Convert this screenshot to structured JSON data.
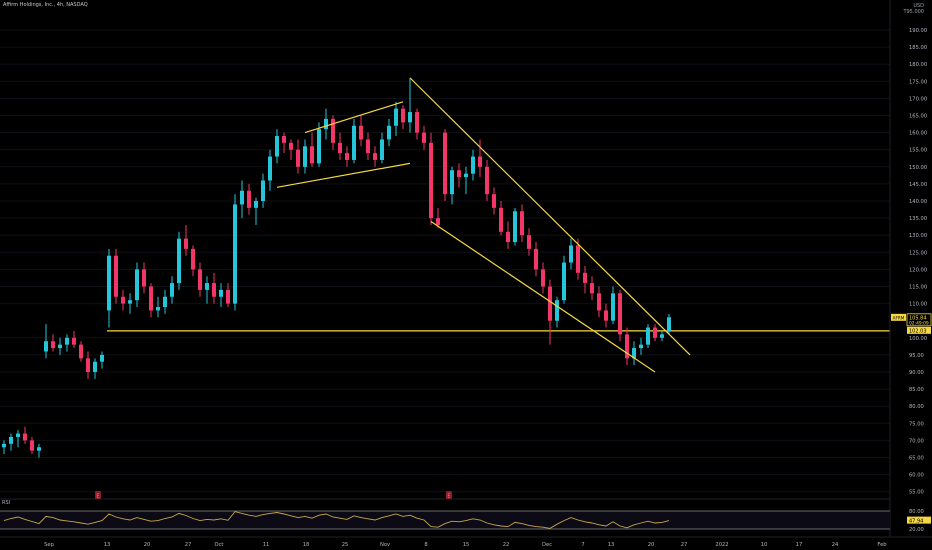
{
  "header": {
    "symbol_line": "Affirm Holdings, Inc., 4h, NASDAQ",
    "currency": "USD",
    "currency_sub": "T95.000"
  },
  "price_axis": {
    "ticks": [
      190,
      185,
      180,
      175,
      170,
      165,
      160,
      155,
      150,
      145,
      140,
      135,
      130,
      125,
      120,
      115,
      110,
      100,
      95,
      90,
      85,
      80,
      75,
      70,
      65,
      60,
      55
    ],
    "label_color": "#b2b5be"
  },
  "time_axis": {
    "labels": [
      "Sep",
      "13",
      "20",
      "27",
      "Oct",
      "11",
      "18",
      "25",
      "Nov",
      "8",
      "15",
      "22",
      "Dec",
      "7",
      "13",
      "20",
      "27",
      "2022",
      "10",
      "17",
      "24",
      "Feb"
    ]
  },
  "badges": {
    "ticker": {
      "text": "AFRM",
      "value": "105.84",
      "countdown": "02:49:09"
    },
    "level": {
      "value": "102.03"
    },
    "rsi": {
      "value": "47.94"
    }
  },
  "rsi_panel": {
    "label": "RSI",
    "ticks": [
      80,
      20
    ]
  },
  "earnings_marker": "E",
  "colors": {
    "up": "#26c6da",
    "down": "#f23667",
    "lines": "#f5d742",
    "bg": "#000000",
    "text": "#b2b5be",
    "rsi": "#c7a84a"
  },
  "chart_data": {
    "type": "candlestick",
    "symbol": "AFRM",
    "interval": "4h",
    "ylim": [
      53,
      197
    ],
    "horizontal_level": 102.03,
    "last_price": 105.84,
    "candles": [
      {
        "o": 68,
        "h": 70,
        "l": 66,
        "c": 69
      },
      {
        "o": 69,
        "h": 72,
        "l": 67,
        "c": 71
      },
      {
        "o": 71,
        "h": 73,
        "l": 68,
        "c": 72
      },
      {
        "o": 72,
        "h": 74,
        "l": 69,
        "c": 70
      },
      {
        "o": 70,
        "h": 71,
        "l": 66,
        "c": 67
      },
      {
        "o": 67,
        "h": 69,
        "l": 65,
        "c": 68
      },
      {
        "o": 96,
        "h": 104,
        "l": 94,
        "c": 99
      },
      {
        "o": 99,
        "h": 101,
        "l": 96,
        "c": 97
      },
      {
        "o": 97,
        "h": 100,
        "l": 95,
        "c": 98
      },
      {
        "o": 98,
        "h": 101,
        "l": 96,
        "c": 100
      },
      {
        "o": 100,
        "h": 102,
        "l": 97,
        "c": 98
      },
      {
        "o": 98,
        "h": 99,
        "l": 93,
        "c": 94
      },
      {
        "o": 94,
        "h": 96,
        "l": 88,
        "c": 90
      },
      {
        "o": 90,
        "h": 94,
        "l": 88,
        "c": 93
      },
      {
        "o": 93,
        "h": 96,
        "l": 91,
        "c": 95
      },
      {
        "o": 108,
        "h": 126,
        "l": 103,
        "c": 124
      },
      {
        "o": 124,
        "h": 126,
        "l": 110,
        "c": 112
      },
      {
        "o": 112,
        "h": 114,
        "l": 108,
        "c": 110
      },
      {
        "o": 110,
        "h": 113,
        "l": 107,
        "c": 111
      },
      {
        "o": 111,
        "h": 122,
        "l": 109,
        "c": 120
      },
      {
        "o": 120,
        "h": 122,
        "l": 113,
        "c": 115
      },
      {
        "o": 115,
        "h": 116,
        "l": 106,
        "c": 108
      },
      {
        "o": 108,
        "h": 112,
        "l": 106,
        "c": 109
      },
      {
        "o": 109,
        "h": 114,
        "l": 107,
        "c": 112
      },
      {
        "o": 112,
        "h": 118,
        "l": 110,
        "c": 116
      },
      {
        "o": 116,
        "h": 131,
        "l": 114,
        "c": 129
      },
      {
        "o": 129,
        "h": 133,
        "l": 124,
        "c": 126
      },
      {
        "o": 126,
        "h": 127,
        "l": 118,
        "c": 120
      },
      {
        "o": 120,
        "h": 122,
        "l": 112,
        "c": 114
      },
      {
        "o": 114,
        "h": 118,
        "l": 110,
        "c": 116
      },
      {
        "o": 116,
        "h": 119,
        "l": 110,
        "c": 112
      },
      {
        "o": 112,
        "h": 116,
        "l": 109,
        "c": 114
      },
      {
        "o": 114,
        "h": 116,
        "l": 109,
        "c": 110
      },
      {
        "o": 110,
        "h": 142,
        "l": 108,
        "c": 139
      },
      {
        "o": 139,
        "h": 146,
        "l": 135,
        "c": 143
      },
      {
        "o": 143,
        "h": 145,
        "l": 136,
        "c": 138
      },
      {
        "o": 138,
        "h": 141,
        "l": 133,
        "c": 140
      },
      {
        "o": 140,
        "h": 148,
        "l": 138,
        "c": 146
      },
      {
        "o": 146,
        "h": 155,
        "l": 143,
        "c": 153
      },
      {
        "o": 153,
        "h": 161,
        "l": 151,
        "c": 159
      },
      {
        "o": 159,
        "h": 160,
        "l": 154,
        "c": 157
      },
      {
        "o": 157,
        "h": 158,
        "l": 152,
        "c": 155
      },
      {
        "o": 155,
        "h": 158,
        "l": 148,
        "c": 150
      },
      {
        "o": 150,
        "h": 158,
        "l": 148,
        "c": 156
      },
      {
        "o": 156,
        "h": 160,
        "l": 150,
        "c": 151
      },
      {
        "o": 151,
        "h": 163,
        "l": 150,
        "c": 161
      },
      {
        "o": 161,
        "h": 167,
        "l": 158,
        "c": 164
      },
      {
        "o": 164,
        "h": 165,
        "l": 155,
        "c": 157
      },
      {
        "o": 157,
        "h": 160,
        "l": 152,
        "c": 154
      },
      {
        "o": 154,
        "h": 156,
        "l": 150,
        "c": 152
      },
      {
        "o": 152,
        "h": 164,
        "l": 151,
        "c": 162
      },
      {
        "o": 162,
        "h": 165,
        "l": 156,
        "c": 158
      },
      {
        "o": 158,
        "h": 160,
        "l": 152,
        "c": 154
      },
      {
        "o": 154,
        "h": 156,
        "l": 150,
        "c": 152
      },
      {
        "o": 152,
        "h": 160,
        "l": 151,
        "c": 158
      },
      {
        "o": 158,
        "h": 164,
        "l": 156,
        "c": 162
      },
      {
        "o": 162,
        "h": 169,
        "l": 159,
        "c": 167
      },
      {
        "o": 167,
        "h": 168,
        "l": 161,
        "c": 163
      },
      {
        "o": 163,
        "h": 176,
        "l": 160,
        "c": 166
      },
      {
        "o": 166,
        "h": 167,
        "l": 158,
        "c": 160
      },
      {
        "o": 160,
        "h": 162,
        "l": 155,
        "c": 157
      },
      {
        "o": 157,
        "h": 160,
        "l": 133,
        "c": 135
      },
      {
        "o": 135,
        "h": 138,
        "l": 132,
        "c": 133
      },
      {
        "o": 160,
        "h": 161,
        "l": 140,
        "c": 142
      },
      {
        "o": 142,
        "h": 150,
        "l": 139,
        "c": 149
      },
      {
        "o": 149,
        "h": 151,
        "l": 144,
        "c": 147
      },
      {
        "o": 147,
        "h": 150,
        "l": 142,
        "c": 148
      },
      {
        "o": 148,
        "h": 155,
        "l": 146,
        "c": 153
      },
      {
        "o": 153,
        "h": 158,
        "l": 147,
        "c": 150
      },
      {
        "o": 150,
        "h": 152,
        "l": 140,
        "c": 142
      },
      {
        "o": 142,
        "h": 144,
        "l": 136,
        "c": 138
      },
      {
        "o": 138,
        "h": 140,
        "l": 130,
        "c": 131
      },
      {
        "o": 131,
        "h": 134,
        "l": 126,
        "c": 128
      },
      {
        "o": 128,
        "h": 138,
        "l": 127,
        "c": 137
      },
      {
        "o": 137,
        "h": 139,
        "l": 128,
        "c": 130
      },
      {
        "o": 130,
        "h": 132,
        "l": 124,
        "c": 126
      },
      {
        "o": 126,
        "h": 128,
        "l": 118,
        "c": 120
      },
      {
        "o": 120,
        "h": 122,
        "l": 113,
        "c": 115
      },
      {
        "o": 115,
        "h": 117,
        "l": 98,
        "c": 105
      },
      {
        "o": 105,
        "h": 112,
        "l": 103,
        "c": 111
      },
      {
        "o": 111,
        "h": 124,
        "l": 110,
        "c": 122
      },
      {
        "o": 122,
        "h": 129,
        "l": 120,
        "c": 127
      },
      {
        "o": 127,
        "h": 129,
        "l": 117,
        "c": 119
      },
      {
        "o": 119,
        "h": 121,
        "l": 113,
        "c": 116
      },
      {
        "o": 116,
        "h": 118,
        "l": 111,
        "c": 113
      },
      {
        "o": 113,
        "h": 115,
        "l": 106,
        "c": 108
      },
      {
        "o": 108,
        "h": 110,
        "l": 103,
        "c": 105
      },
      {
        "o": 105,
        "h": 115,
        "l": 104,
        "c": 113
      },
      {
        "o": 113,
        "h": 114,
        "l": 99,
        "c": 101
      },
      {
        "o": 101,
        "h": 103,
        "l": 92,
        "c": 94
      },
      {
        "o": 94,
        "h": 99,
        "l": 92,
        "c": 97
      },
      {
        "o": 97,
        "h": 100,
        "l": 95,
        "c": 98
      },
      {
        "o": 98,
        "h": 104,
        "l": 97,
        "c": 103
      },
      {
        "o": 103,
        "h": 104,
        "l": 99,
        "c": 100
      },
      {
        "o": 100,
        "h": 102,
        "l": 99,
        "c": 101
      },
      {
        "o": 102,
        "h": 107,
        "l": 101,
        "c": 106
      }
    ],
    "trendlines": [
      {
        "name": "flag-upper",
        "from": {
          "i": 43,
          "p": 160
        },
        "to": {
          "i": 57,
          "p": 169
        }
      },
      {
        "name": "flag-lower",
        "from": {
          "i": 39,
          "p": 144
        },
        "to": {
          "i": 58,
          "p": 151
        }
      },
      {
        "name": "channel-upper",
        "from": {
          "i": 58,
          "p": 176
        },
        "to": {
          "i": 98,
          "p": 95
        }
      },
      {
        "name": "channel-lower",
        "from": {
          "i": 61,
          "p": 134
        },
        "to": {
          "i": 93,
          "p": 90
        }
      }
    ],
    "rsi": {
      "ylim": [
        0,
        100
      ],
      "upper": 80,
      "lower": 20,
      "last": 47.94,
      "values": [
        48,
        55,
        60,
        52,
        45,
        38,
        62,
        58,
        50,
        47,
        44,
        40,
        36,
        42,
        48,
        70,
        60,
        54,
        50,
        58,
        52,
        46,
        48,
        55,
        60,
        72,
        65,
        55,
        48,
        52,
        50,
        54,
        49,
        78,
        72,
        66,
        62,
        68,
        72,
        75,
        70,
        64,
        58,
        62,
        56,
        66,
        70,
        60,
        56,
        52,
        64,
        58,
        54,
        50,
        58,
        64,
        70,
        62,
        66,
        56,
        50,
        28,
        26,
        38,
        46,
        44,
        48,
        54,
        50,
        40,
        34,
        30,
        28,
        42,
        38,
        32,
        28,
        26,
        22,
        36,
        48,
        58,
        50,
        44,
        40,
        34,
        30,
        44,
        30,
        24,
        34,
        40,
        46,
        40,
        42,
        48
      ]
    }
  }
}
